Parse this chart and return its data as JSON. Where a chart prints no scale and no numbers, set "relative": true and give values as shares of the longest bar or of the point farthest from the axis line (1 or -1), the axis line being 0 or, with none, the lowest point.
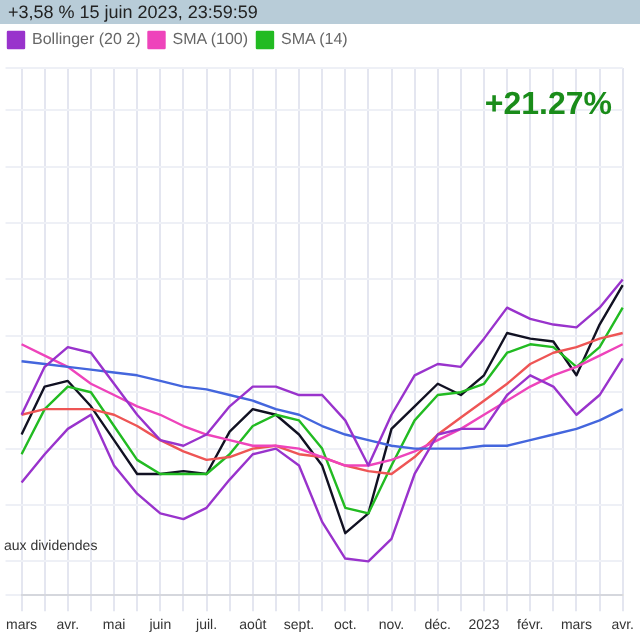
{
  "chart_data": {
    "type": "line",
    "relative": true,
    "title": "+3,58 % 15 juin 2023, 23:59:59",
    "annotations": [
      "+21.27%",
      "aux dividendes"
    ],
    "categories": [
      "mars",
      null,
      "avr.",
      null,
      "mai",
      null,
      "juin",
      null,
      "juil.",
      null,
      "août",
      null,
      "sept.",
      null,
      "oct.",
      null,
      "nov.",
      null,
      "déc.",
      null,
      "2023",
      null,
      "févr.",
      null,
      "mars",
      null,
      "avr."
    ],
    "series": [
      {
        "name": "Bollinger (20 2)",
        "color": "#9933cc",
        "values": [
          0.52,
          0.69,
          0.76,
          0.74,
          0.63,
          0.52,
          0.43,
          0.41,
          0.45,
          0.55,
          0.62,
          0.62,
          0.59,
          0.59,
          0.5,
          0.34,
          0.52,
          0.66,
          0.7,
          0.69,
          0.79,
          0.9,
          0.86,
          0.84,
          0.83,
          0.9,
          1.0
        ]
      },
      {
        "color": "#9933cc",
        "values": [
          0.28,
          0.38,
          0.47,
          0.52,
          0.34,
          0.24,
          0.17,
          0.15,
          0.19,
          0.29,
          0.38,
          0.4,
          0.34,
          0.14,
          0.01,
          0,
          0.08,
          0.31,
          0.45,
          0.47,
          0.47,
          0.59,
          0.66,
          0.62,
          0.52,
          0.59,
          0.72
        ]
      },
      {
        "color": "#4466dd",
        "values": [
          0.71,
          0.7,
          0.69,
          0.68,
          0.67,
          0.66,
          0.64,
          0.62,
          0.61,
          0.59,
          0.57,
          0.54,
          0.52,
          0.48,
          0.45,
          0.43,
          0.41,
          0.4,
          0.4,
          0.4,
          0.41,
          0.41,
          0.43,
          0.45,
          0.47,
          0.5,
          0.54
        ]
      },
      {
        "name": "SMA (100)",
        "color": "#ee44bb",
        "values": [
          0.77,
          0.73,
          0.69,
          0.63,
          0.59,
          0.55,
          0.52,
          0.48,
          0.45,
          0.43,
          0.41,
          0.41,
          0.4,
          0.37,
          0.34,
          0.34,
          0.36,
          0.39,
          0.43,
          0.47,
          0.52,
          0.57,
          0.62,
          0.66,
          0.69,
          0.73,
          0.77
        ]
      },
      {
        "color": "#ee5555",
        "values": [
          0.52,
          0.54,
          0.54,
          0.54,
          0.52,
          0.48,
          0.43,
          0.39,
          0.36,
          0.37,
          0.4,
          0.41,
          0.38,
          0.37,
          0.34,
          0.32,
          0.31,
          0.37,
          0.45,
          0.51,
          0.57,
          0.63,
          0.7,
          0.74,
          0.76,
          0.79,
          0.81
        ]
      },
      {
        "name": "SMA (14)",
        "color": "#22bb22",
        "values": [
          0.38,
          0.54,
          0.62,
          0.6,
          0.48,
          0.36,
          0.31,
          0.31,
          0.31,
          0.38,
          0.48,
          0.52,
          0.5,
          0.4,
          0.19,
          0.17,
          0.34,
          0.5,
          0.59,
          0.6,
          0.63,
          0.74,
          0.77,
          0.76,
          0.69,
          0.76,
          0.9
        ]
      },
      {
        "color": "#111122",
        "values": [
          0.45,
          0.62,
          0.64,
          0.55,
          0.43,
          0.31,
          0.31,
          0.32,
          0.31,
          0.46,
          0.54,
          0.52,
          0.45,
          0.34,
          0.1,
          0.17,
          0.47,
          0.55,
          0.63,
          0.59,
          0.66,
          0.81,
          0.79,
          0.78,
          0.66,
          0.84,
          0.98
        ]
      }
    ],
    "grid": true,
    "legend": "top left",
    "marker": "none",
    "line_style": "solid"
  }
}
